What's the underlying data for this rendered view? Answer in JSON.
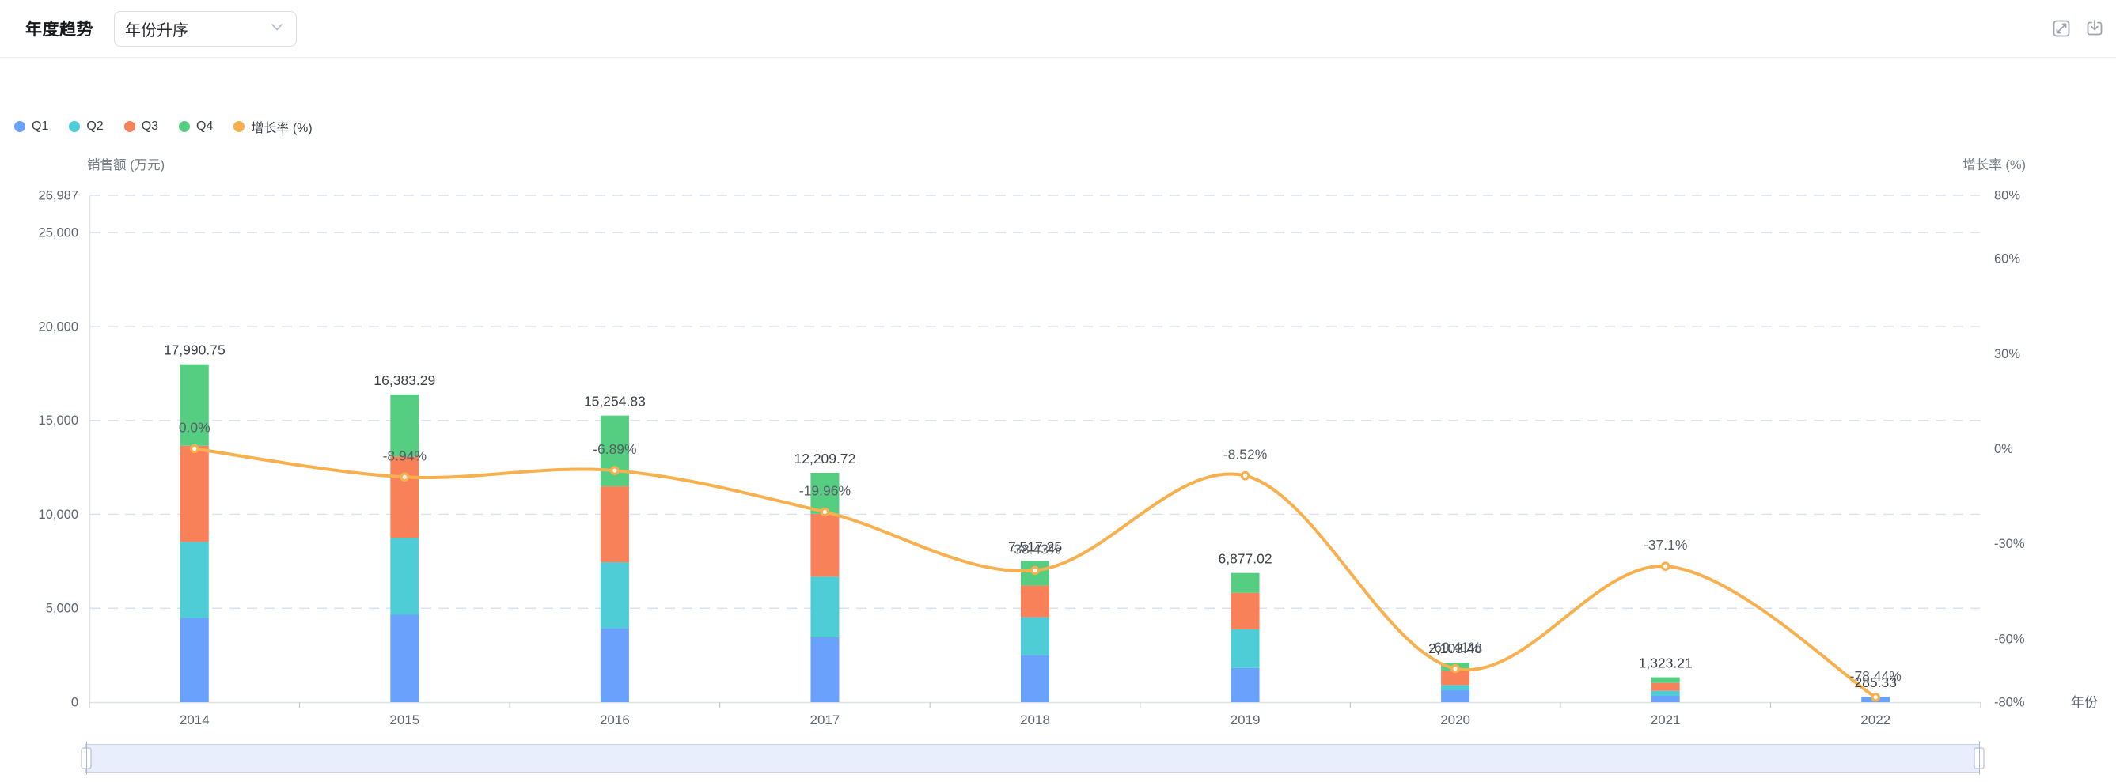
{
  "header": {
    "title": "年度趋势",
    "sort_select": {
      "value": "年份升序"
    }
  },
  "chart_data": {
    "type": "bar-line-combo",
    "title": "年度趋势",
    "categories": [
      "2014",
      "2015",
      "2016",
      "2017",
      "2018",
      "2019",
      "2020",
      "2021",
      "2022"
    ],
    "stacked_bar_unit": "万元",
    "series": [
      {
        "name": "Q1",
        "type": "bar",
        "color": "#69A1FC",
        "values": [
          4483,
          4670,
          3940,
          3460,
          2486,
          1815,
          630,
          337,
          285.33
        ]
      },
      {
        "name": "Q2",
        "type": "bar",
        "color": "#4FCDD6",
        "values": [
          4050,
          4080,
          3510,
          3230,
          2035,
          2065,
          281,
          266,
          0
        ]
      },
      {
        "name": "Q3",
        "type": "bar",
        "color": "#F9815A",
        "values": [
          5118,
          4330,
          4040,
          3335,
          1684,
          1940,
          769,
          419,
          0
        ]
      },
      {
        "name": "Q4",
        "type": "bar",
        "color": "#55CE82",
        "values": [
          4339.75,
          3303.29,
          3764.83,
          2184.72,
          1312.25,
          1057.02,
          423.48,
          301.21,
          0
        ]
      }
    ],
    "totals": [
      17990.75,
      16383.29,
      15254.83,
      12209.72,
      7517.25,
      6877.02,
      2103.48,
      1323.21,
      285.33
    ],
    "total_labels": [
      "17,990.75",
      "16,383.29",
      "15,254.83",
      "12,209.72",
      "7,517.25",
      "6,877.02",
      "2,103.48",
      "1,323.21",
      "285.33"
    ],
    "growth_series": {
      "name": "增长率 (%)",
      "type": "line",
      "color": "#F8B04E",
      "values": [
        0.0,
        -8.94,
        -6.89,
        -19.96,
        -38.43,
        -8.52,
        -69.41,
        -37.1,
        -78.44
      ],
      "labels": [
        "0.0%",
        "-8.94%",
        "-6.89%",
        "-19.96%",
        "-38.43%",
        "-8.52%",
        "-69.41%",
        "-37.1%",
        "-78.44%"
      ]
    },
    "y_axis_left": {
      "name": "销售额 (万元)",
      "min": 0,
      "max": 26987,
      "ticks": [
        {
          "value": 26987,
          "label": "26,987"
        },
        {
          "value": 25000,
          "label": "25,000"
        },
        {
          "value": 20000,
          "label": "20,000"
        },
        {
          "value": 15000,
          "label": "15,000"
        },
        {
          "value": 10000,
          "label": "10,000"
        },
        {
          "value": 5000,
          "label": "5,000"
        },
        {
          "value": 0,
          "label": "0"
        }
      ]
    },
    "y_axis_right": {
      "name": "增长率 (%)",
      "min": -80,
      "max": 80,
      "ticks": [
        {
          "value": 80,
          "label": "80%"
        },
        {
          "value": 60,
          "label": "60%"
        },
        {
          "value": 30,
          "label": "30%"
        },
        {
          "value": 0,
          "label": "0%"
        },
        {
          "value": -30,
          "label": "-30%"
        },
        {
          "value": -60,
          "label": "-60%"
        },
        {
          "value": -80,
          "label": "-80%"
        }
      ]
    },
    "x_axis": {
      "name": "年份",
      "labels": [
        "2014",
        "2015",
        "2016",
        "2017",
        "2018",
        "2019",
        "2020",
        "2021",
        "2022"
      ]
    },
    "grid": "horizontal-dashed",
    "legend_position": "top-left",
    "colors": {
      "grid_line": "#DBE1F0",
      "axis_line": "#DFE4E6",
      "tick_mark": "#C2C8D4",
      "axis_text": "#5F6570",
      "axis_name_text": "#757B84",
      "total_label_text": "#3C4046",
      "growth_label_text": "#595E66",
      "datazoom_fill": "#E8EEFB",
      "datazoom_border": "#C7D3EE"
    }
  }
}
